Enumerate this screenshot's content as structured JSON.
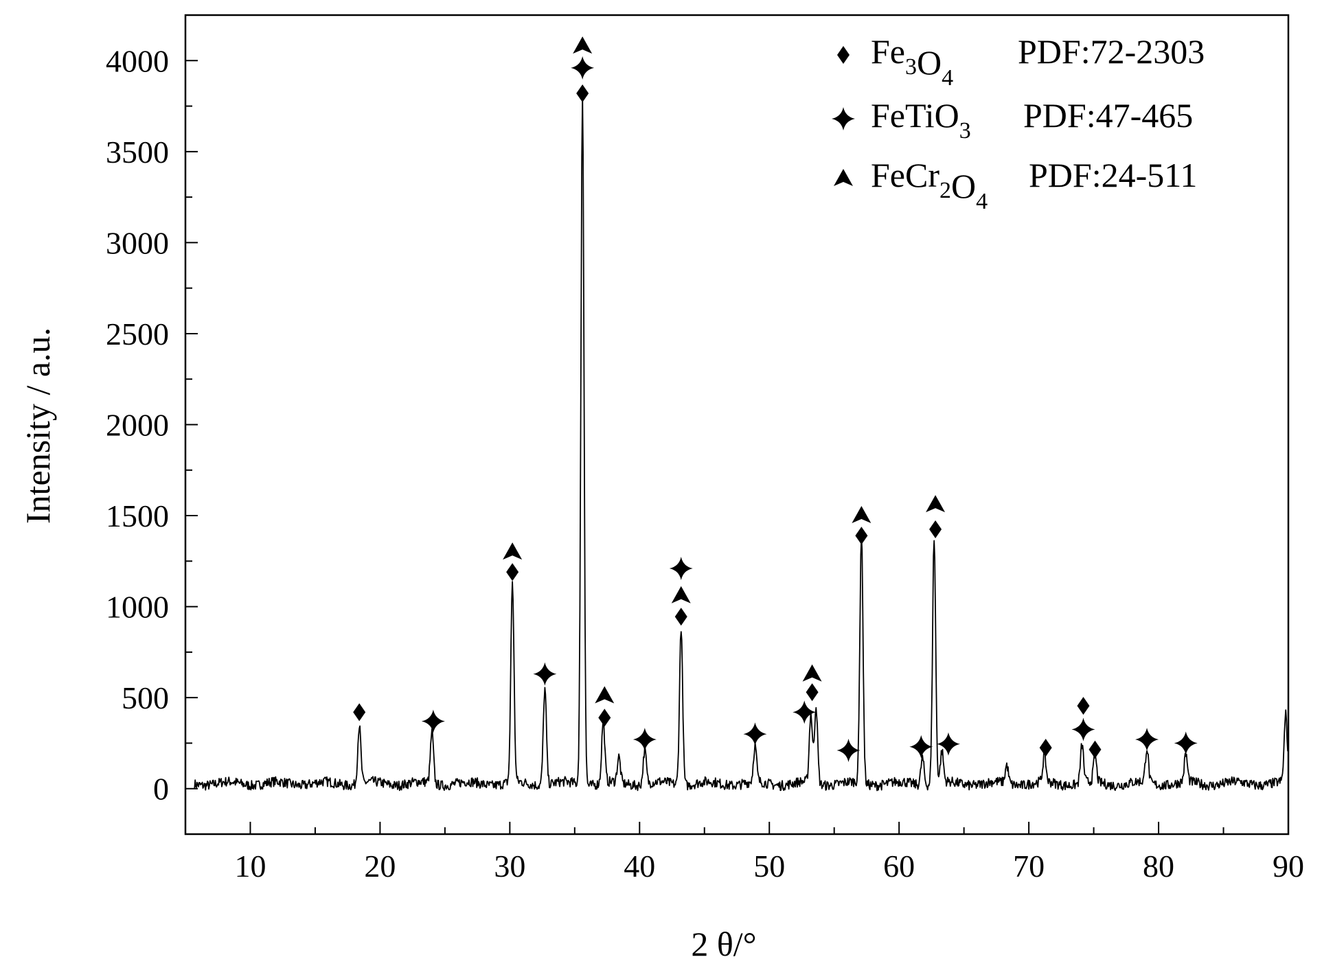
{
  "chart_data": {
    "type": "line",
    "title": "",
    "xlabel": "2 θ/°",
    "ylabel": "Intensity / a.u.",
    "xlim": [
      5,
      90
    ],
    "ylim": [
      -250,
      4250
    ],
    "x_ticks": [
      10,
      20,
      30,
      40,
      50,
      60,
      70,
      80,
      90
    ],
    "y_ticks": [
      0,
      500,
      1000,
      1500,
      2000,
      2500,
      3000,
      3500,
      4000
    ],
    "grid": false,
    "legend_position": "top-right",
    "line_color": "#000000",
    "peaks": [
      {
        "x": 18.4,
        "y": 320
      },
      {
        "x": 24.0,
        "y": 280
      },
      {
        "x": 30.2,
        "y": 1100
      },
      {
        "x": 32.7,
        "y": 530
      },
      {
        "x": 35.6,
        "y": 3780
      },
      {
        "x": 37.2,
        "y": 340
      },
      {
        "x": 38.4,
        "y": 140
      },
      {
        "x": 40.4,
        "y": 190
      },
      {
        "x": 43.2,
        "y": 870
      },
      {
        "x": 48.9,
        "y": 200
      },
      {
        "x": 53.2,
        "y": 380
      },
      {
        "x": 53.6,
        "y": 430
      },
      {
        "x": 57.1,
        "y": 1370
      },
      {
        "x": 61.8,
        "y": 150
      },
      {
        "x": 62.7,
        "y": 1350
      },
      {
        "x": 63.3,
        "y": 170
      },
      {
        "x": 68.3,
        "y": 100
      },
      {
        "x": 71.2,
        "y": 150
      },
      {
        "x": 74.1,
        "y": 210
      },
      {
        "x": 75.1,
        "y": 140
      },
      {
        "x": 79.1,
        "y": 190
      },
      {
        "x": 82.1,
        "y": 150
      },
      {
        "x": 89.8,
        "y": 370
      }
    ],
    "phases": [
      {
        "symbol": "diamond",
        "name": "Fe3O4",
        "formula": [
          [
            "Fe",
            "n"
          ],
          [
            "3",
            "sub"
          ],
          [
            "O",
            "n"
          ],
          [
            "4",
            "sub"
          ]
        ],
        "pdf": "PDF:72-2303"
      },
      {
        "symbol": "star",
        "name": "FeTiO3",
        "formula": [
          [
            "FeTiO",
            "n"
          ],
          [
            "3",
            "sub"
          ]
        ],
        "pdf": "PDF:47-465"
      },
      {
        "symbol": "arrowhead",
        "name": "FeCr2O4",
        "formula": [
          [
            "FeCr",
            "n"
          ],
          [
            "2",
            "sub"
          ],
          [
            "O",
            "n"
          ],
          [
            "4",
            "sub"
          ]
        ],
        "pdf": "PDF:24-511"
      }
    ],
    "markers": [
      {
        "symbol": "diamond",
        "x": 18.4,
        "y": 420
      },
      {
        "symbol": "star",
        "x": 24.1,
        "y": 370
      },
      {
        "symbol": "arrowhead",
        "x": 30.2,
        "y": 1300
      },
      {
        "symbol": "diamond",
        "x": 30.2,
        "y": 1190
      },
      {
        "symbol": "star",
        "x": 32.7,
        "y": 630
      },
      {
        "symbol": "arrowhead",
        "x": 35.6,
        "y": 4080
      },
      {
        "symbol": "star",
        "x": 35.6,
        "y": 3960
      },
      {
        "symbol": "diamond",
        "x": 35.6,
        "y": 3820
      },
      {
        "symbol": "arrowhead",
        "x": 37.3,
        "y": 510
      },
      {
        "symbol": "diamond",
        "x": 37.3,
        "y": 390
      },
      {
        "symbol": "star",
        "x": 40.4,
        "y": 270
      },
      {
        "symbol": "star",
        "x": 43.2,
        "y": 1210
      },
      {
        "symbol": "arrowhead",
        "x": 43.2,
        "y": 1060
      },
      {
        "symbol": "diamond",
        "x": 43.2,
        "y": 945
      },
      {
        "symbol": "star",
        "x": 48.9,
        "y": 300
      },
      {
        "symbol": "star",
        "x": 52.7,
        "y": 420
      },
      {
        "symbol": "arrowhead",
        "x": 53.3,
        "y": 630
      },
      {
        "symbol": "diamond",
        "x": 53.3,
        "y": 530
      },
      {
        "symbol": "star",
        "x": 56.1,
        "y": 210
      },
      {
        "symbol": "arrowhead",
        "x": 57.1,
        "y": 1500
      },
      {
        "symbol": "diamond",
        "x": 57.1,
        "y": 1390
      },
      {
        "symbol": "star",
        "x": 61.7,
        "y": 230
      },
      {
        "symbol": "arrowhead",
        "x": 62.8,
        "y": 1560
      },
      {
        "symbol": "diamond",
        "x": 62.8,
        "y": 1425
      },
      {
        "symbol": "star",
        "x": 63.8,
        "y": 245
      },
      {
        "symbol": "diamond",
        "x": 71.3,
        "y": 225
      },
      {
        "symbol": "diamond",
        "x": 74.2,
        "y": 455
      },
      {
        "symbol": "star",
        "x": 74.2,
        "y": 325
      },
      {
        "symbol": "diamond",
        "x": 75.1,
        "y": 215
      },
      {
        "symbol": "star",
        "x": 79.1,
        "y": 270
      },
      {
        "symbol": "star",
        "x": 82.1,
        "y": 250
      }
    ]
  }
}
